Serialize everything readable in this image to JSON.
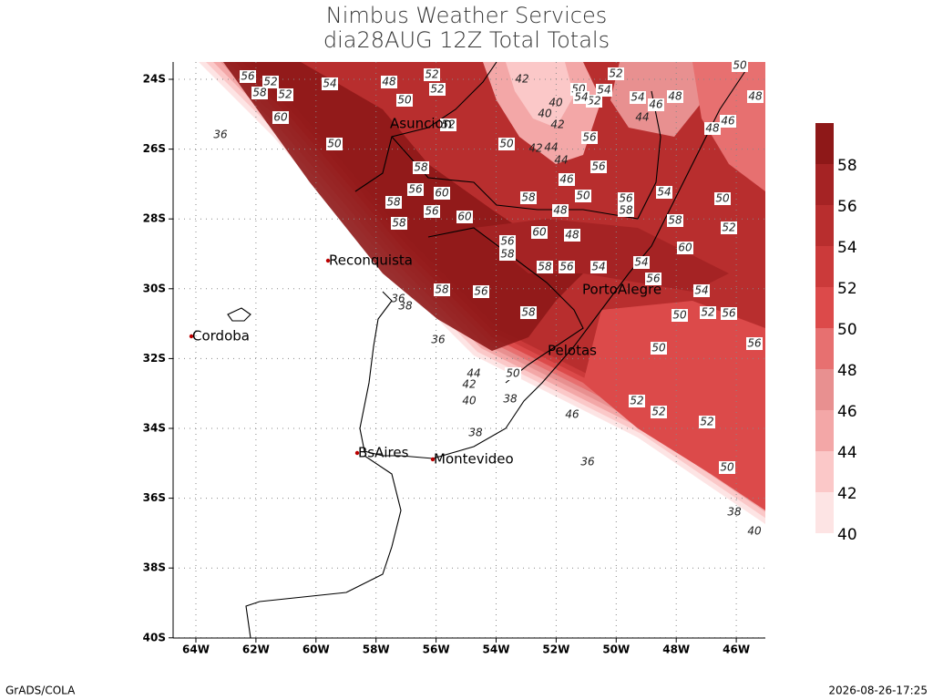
{
  "header": {
    "title": "Nimbus Weather Services",
    "subtitle": "dia28AUG 12Z Total Totals"
  },
  "map": {
    "lon_ticks": [
      "64W",
      "62W",
      "60W",
      "58W",
      "56W",
      "54W",
      "52W",
      "50W",
      "48W",
      "46W"
    ],
    "lat_ticks": [
      "24S",
      "26S",
      "28S",
      "30S",
      "32S",
      "34S",
      "36S",
      "38S",
      "40S"
    ],
    "grid": true,
    "cities": [
      "Asuncion",
      "Reconquista",
      "Cordoba",
      "PortoAlegre",
      "Pelotas",
      "BsAires",
      "Montevideo"
    ],
    "contour_labels": [
      56,
      52,
      58,
      52,
      60,
      54,
      48,
      50,
      52,
      52,
      50,
      58,
      56,
      60,
      58,
      58,
      56,
      60,
      58,
      60,
      56,
      58,
      48,
      48,
      50,
      56,
      58,
      54,
      50,
      58,
      60,
      52,
      58,
      56,
      58,
      58,
      56,
      54,
      54,
      56,
      54,
      52,
      56,
      50,
      50,
      56,
      52,
      52,
      52,
      50,
      46,
      38,
      36,
      44,
      42,
      40,
      38,
      50,
      50,
      42,
      44,
      44,
      46,
      56,
      56,
      42,
      40,
      40,
      50,
      54,
      52,
      54,
      54,
      46,
      44,
      48,
      48,
      46,
      48,
      50,
      52,
      42,
      36,
      36,
      38,
      36,
      40,
      38,
      52
    ]
  },
  "colorbar": {
    "levels": [
      40,
      42,
      44,
      46,
      48,
      50,
      52,
      54,
      56,
      58
    ],
    "colors": [
      "#fde4e4",
      "#fbc8c8",
      "#f3a7a7",
      "#e89090",
      "#e77070",
      "#dc4a4a",
      "#cb3a3a",
      "#b82e2e",
      "#a52324",
      "#8e1818"
    ]
  },
  "footer": {
    "left": "GrADS/COLA",
    "right": "2026-08-26-17:25"
  }
}
